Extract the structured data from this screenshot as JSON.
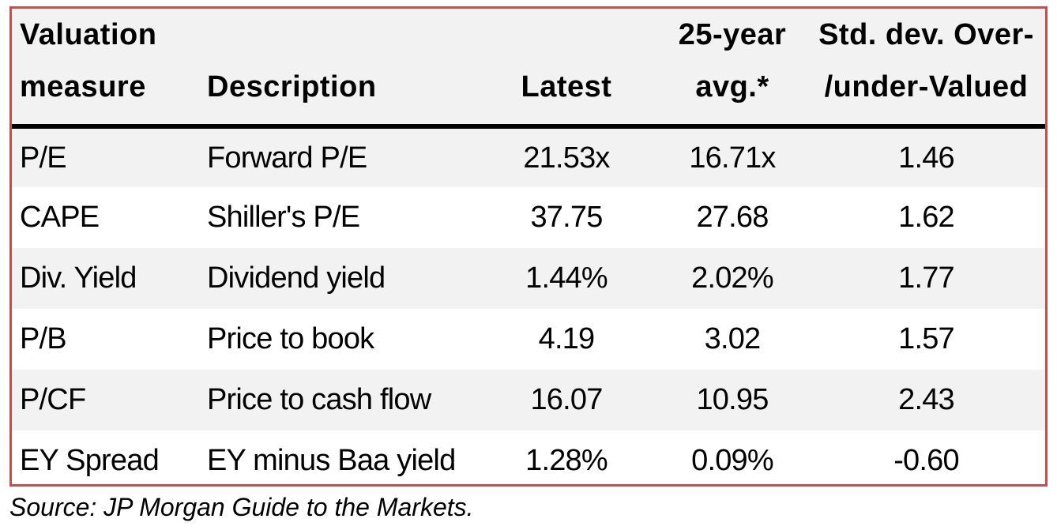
{
  "table": {
    "header": [
      [
        "Valuation",
        "measure"
      ],
      [
        "Description"
      ],
      [
        "Latest"
      ],
      [
        "25-year",
        "avg.*"
      ],
      [
        "Std. dev. Over-",
        "/under-Valued"
      ]
    ],
    "rows": [
      [
        "P/E",
        "Forward P/E",
        "21.53x",
        "16.71x",
        "1.46"
      ],
      [
        "CAPE",
        "Shiller's P/E",
        "37.75",
        "27.68",
        "1.62"
      ],
      [
        "Div. Yield",
        "Dividend yield",
        "1.44%",
        "2.02%",
        "1.77"
      ],
      [
        "P/B",
        "Price to book",
        "4.19",
        "3.02",
        "1.57"
      ],
      [
        "P/CF",
        "Price to cash flow",
        "16.07",
        "10.95",
        "2.43"
      ],
      [
        "EY Spread",
        "EY minus Baa yield",
        "1.28%",
        "0.09%",
        "-0.60"
      ]
    ]
  },
  "source": "Source: JP Morgan Guide to the Markets."
}
